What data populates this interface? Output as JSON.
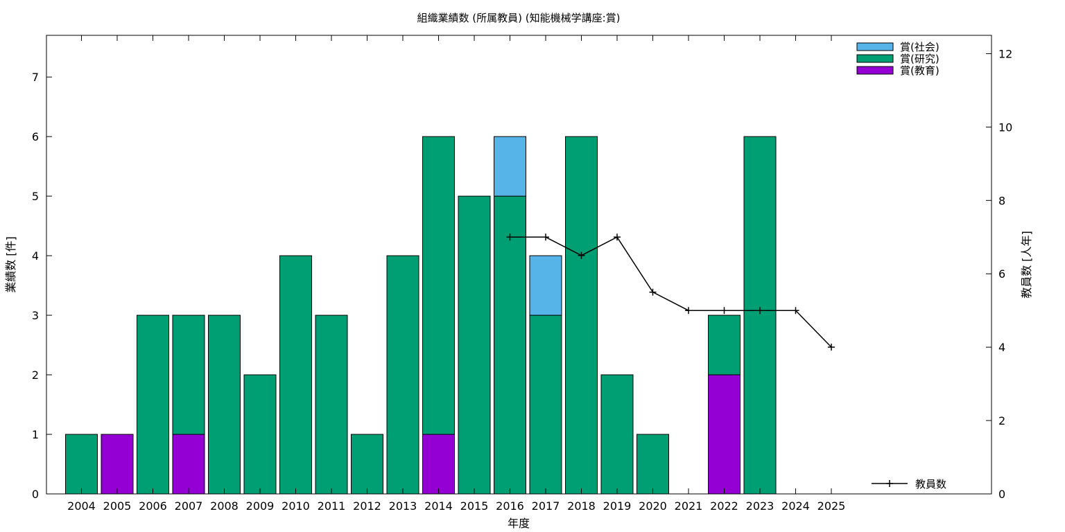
{
  "chart_data": {
    "type": "bar",
    "title": "組織業績数 (所属教員) (知能機械学講座:賞)",
    "xlabel": "年度",
    "ylabel": "業績数 [件]",
    "y2label": "教員数 [人年]",
    "ylim": [
      0,
      7.7
    ],
    "y2lim": [
      0,
      12.5
    ],
    "yticks": [
      "0",
      "1",
      "2",
      "3",
      "4",
      "5",
      "6",
      "7"
    ],
    "y2ticks": [
      "0",
      "2",
      "4",
      "6",
      "8",
      "10",
      "12"
    ],
    "categories": [
      "2004",
      "2005",
      "2006",
      "2007",
      "2008",
      "2009",
      "2010",
      "2011",
      "2012",
      "2013",
      "2014",
      "2015",
      "2016",
      "2017",
      "2018",
      "2019",
      "2020",
      "2021",
      "2022",
      "2023",
      "2024",
      "2025"
    ],
    "stacked": true,
    "grid": false,
    "legend_position": "top-right",
    "series": [
      {
        "name": "賞(教育)",
        "color": "#9400d3",
        "values": [
          0,
          1,
          0,
          1,
          0,
          0,
          0,
          0,
          0,
          0,
          1,
          0,
          0,
          0,
          0,
          0,
          0,
          0,
          2,
          0,
          0,
          0
        ]
      },
      {
        "name": "賞(研究)",
        "color": "#009e73",
        "values": [
          1,
          0,
          3,
          2,
          3,
          2,
          4,
          3,
          1,
          4,
          5,
          5,
          5,
          3,
          6,
          2,
          1,
          0,
          1,
          6,
          0,
          0
        ]
      },
      {
        "name": "賞(社会)",
        "color": "#56b4e9",
        "values": [
          0,
          0,
          0,
          0,
          0,
          0,
          0,
          0,
          0,
          0,
          0,
          0,
          1,
          1,
          0,
          0,
          0,
          0,
          0,
          0,
          0,
          0
        ]
      }
    ],
    "line_series": {
      "name": "教員数",
      "axis": "right",
      "color": "#000000",
      "x": [
        "2016",
        "2017",
        "2018",
        "2019",
        "2020",
        "2021",
        "2022",
        "2023",
        "2024",
        "2025"
      ],
      "values": [
        7.0,
        7.0,
        6.5,
        7.0,
        5.5,
        5.0,
        5.0,
        5.0,
        5.0,
        4.0
      ]
    }
  }
}
